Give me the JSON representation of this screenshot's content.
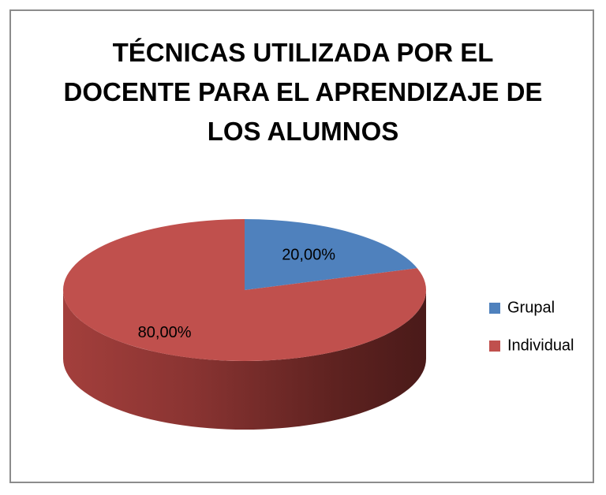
{
  "chart_data": {
    "type": "pie",
    "title": "TÉCNICAS UTILIZADA POR EL DOCENTE PARA EL APRENDIZAJE DE LOS ALUMNOS",
    "categories": [
      "Grupal",
      "Individual"
    ],
    "values": [
      20,
      80
    ],
    "value_labels": [
      "20,00%",
      "80,00%"
    ],
    "colors": [
      "#4f81bd",
      "#c0504d"
    ],
    "legend": "right"
  }
}
